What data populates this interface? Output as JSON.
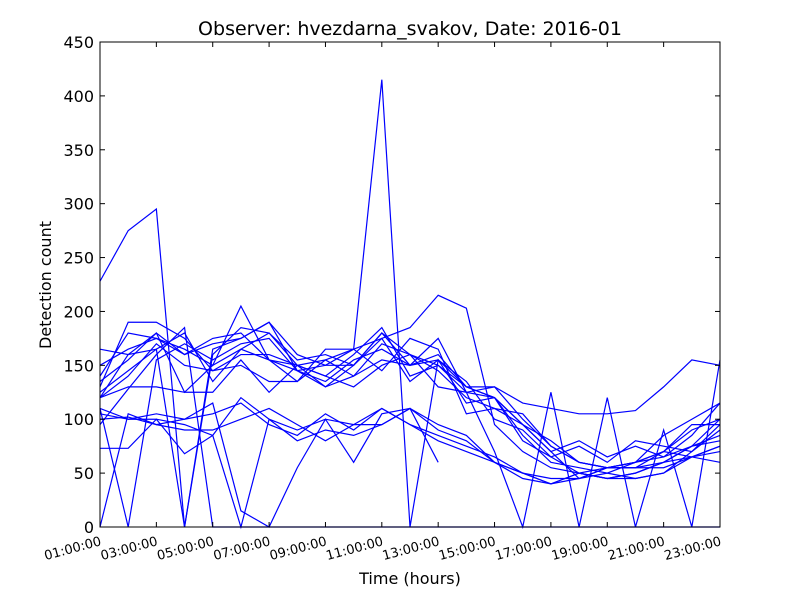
{
  "chart_data": {
    "type": "line",
    "title": "Observer: hvezdarna_svakov, Date: 2016-01",
    "xlabel": "Time (hours)",
    "ylabel": "Detection count",
    "ylim": [
      0,
      450
    ],
    "yticks": [
      0,
      50,
      100,
      150,
      200,
      250,
      300,
      350,
      400,
      450
    ],
    "xlim": [
      1,
      23
    ],
    "xtick_labels": [
      "01:00:00",
      "03:00:00",
      "05:00:00",
      "07:00:00",
      "09:00:00",
      "11:00:00",
      "13:00:00",
      "15:00:00",
      "17:00:00",
      "19:00:00",
      "21:00:00",
      "23:00:00"
    ],
    "xtick_values": [
      1,
      3,
      5,
      7,
      9,
      11,
      13,
      15,
      17,
      19,
      21,
      23
    ],
    "grid": false,
    "line_color": "#0000ff",
    "x": [
      1,
      2,
      3,
      4,
      5,
      6,
      7,
      8,
      9,
      10,
      11,
      12,
      13,
      14,
      15,
      16,
      17,
      18,
      19,
      20,
      21,
      22,
      23
    ],
    "series": [
      {
        "values": [
          228,
          275,
          295,
          0,
          165,
          175,
          190,
          160,
          150,
          165,
          145,
          175,
          165,
          105,
          110,
          105,
          75,
          60,
          55,
          60,
          70,
          90,
          100
        ]
      },
      {
        "values": [
          165,
          160,
          180,
          125,
          150,
          165,
          155,
          135,
          155,
          165,
          415,
          0,
          155,
          115,
          120,
          95,
          70,
          80,
          65,
          75,
          65,
          85,
          115
        ]
      },
      {
        "values": [
          110,
          0,
          155,
          170,
          155,
          170,
          175,
          145,
          130,
          140,
          170,
          160,
          150,
          130,
          120,
          80,
          65,
          75,
          60,
          80,
          75,
          70,
          90
        ]
      },
      {
        "values": [
          125,
          145,
          165,
          0,
          160,
          185,
          180,
          155,
          160,
          150,
          180,
          160,
          145,
          120,
          110,
          95,
          80,
          60,
          55,
          55,
          55,
          65,
          75
        ]
      },
      {
        "values": [
          130,
          190,
          190,
          175,
          145,
          150,
          135,
          135,
          165,
          165,
          175,
          185,
          215,
          203,
          95,
          70,
          55,
          50,
          45,
          45,
          50,
          70,
          95
        ]
      },
      {
        "values": [
          140,
          180,
          175,
          165,
          150,
          205,
          155,
          150,
          140,
          160,
          185,
          140,
          150,
          125,
          130,
          100,
          75,
          60,
          55,
          55,
          70,
          65,
          60
        ]
      },
      {
        "values": [
          120,
          160,
          165,
          180,
          135,
          165,
          180,
          150,
          130,
          150,
          175,
          135,
          155,
          135,
          100,
          90,
          65,
          50,
          55,
          60,
          70,
          95,
          95
        ]
      },
      {
        "values": [
          135,
          155,
          180,
          160,
          175,
          180,
          155,
          145,
          135,
          155,
          165,
          150,
          155,
          130,
          120,
          85,
          60,
          55,
          50,
          60,
          65,
          75,
          100
        ]
      },
      {
        "values": [
          150,
          165,
          175,
          160,
          170,
          175,
          190,
          145,
          150,
          150,
          180,
          150,
          175,
          125,
          120,
          95,
          70,
          45,
          55,
          60,
          85,
          100,
          115
        ]
      },
      {
        "values": [
          120,
          130,
          130,
          125,
          125,
          155,
          125,
          150,
          140,
          130,
          150,
          160,
          130,
          125,
          70,
          0,
          125,
          0,
          120,
          0,
          90,
          0,
          155
        ]
      },
      {
        "values": [
          110,
          100,
          100,
          95,
          85,
          120,
          100,
          90,
          100,
          95,
          110,
          95,
          85,
          75,
          65,
          50,
          40,
          45,
          50,
          45,
          50,
          65,
          75
        ]
      },
      {
        "values": [
          105,
          100,
          105,
          100,
          105,
          115,
          95,
          85,
          105,
          90,
          110,
          95,
          80,
          70,
          60,
          45,
          40,
          50,
          45,
          50,
          60,
          65,
          70
        ]
      },
      {
        "values": [
          73,
          73,
          100,
          68,
          85,
          0,
          100,
          80,
          90,
          85,
          95,
          110,
          90,
          80,
          60,
          50,
          45,
          45,
          55,
          55,
          60,
          75,
          80
        ]
      },
      {
        "values": [
          100,
          102,
          95,
          90,
          90,
          100,
          110,
          95,
          80,
          95,
          95,
          110,
          95,
          85,
          60,
          50,
          40,
          50,
          45,
          50,
          60,
          75,
          85
        ]
      },
      {
        "values": [
          0,
          105,
          95,
          100,
          115,
          15,
          0,
          55,
          100,
          60,
          105,
          110,
          60,
          null,
          null,
          null,
          null,
          null,
          null,
          null,
          null,
          null,
          null
        ]
      },
      {
        "values": [
          95,
          128,
          160,
          185,
          0,
          0,
          0,
          0,
          0,
          0,
          0,
          0,
          0,
          0,
          0,
          0,
          0,
          0,
          0,
          0,
          0,
          0,
          0
        ]
      },
      {
        "values": [
          120,
          140,
          170,
          150,
          145,
          160,
          160,
          150,
          155,
          140,
          155,
          150,
          160,
          130,
          130,
          115,
          110,
          105,
          105,
          108,
          130,
          155,
          150
        ]
      }
    ]
  }
}
